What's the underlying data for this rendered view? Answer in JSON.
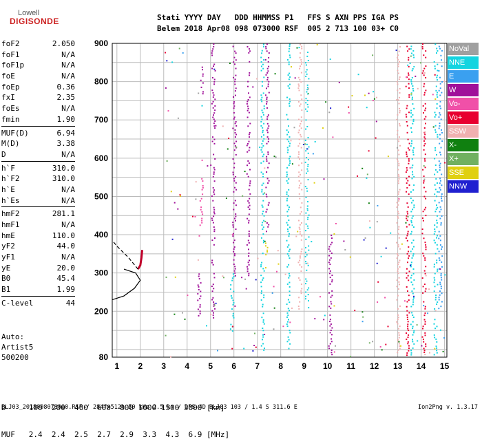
{
  "logo": {
    "line1": "Lowell",
    "line2": "DIGISONDE"
  },
  "header": {
    "row1": "Stati YYYY DAY   DDD HHMMSS P1   FFS S AXN PPS IGA PS",
    "row2": "Belem 2018 Apr08 098 073000 RSF  005 2 713 100 03+ C0"
  },
  "params": [
    {
      "label": "foF2",
      "value": "2.050"
    },
    {
      "label": "foF1",
      "value": "N/A"
    },
    {
      "label": "foF1p",
      "value": "N/A"
    },
    {
      "label": "foE",
      "value": "N/A"
    },
    {
      "label": "foEp",
      "value": "0.36"
    },
    {
      "label": "fxI",
      "value": "2.35"
    },
    {
      "label": "foEs",
      "value": "N/A"
    },
    {
      "label": "fmin",
      "value": "1.90"
    },
    {
      "sep": true
    },
    {
      "label": "MUF(D)",
      "value": "6.94"
    },
    {
      "label": "M(D)",
      "value": "3.38"
    },
    {
      "label": "D",
      "value": "N/A"
    },
    {
      "sep": true
    },
    {
      "label": "h`F",
      "value": "310.0"
    },
    {
      "label": "h`F2",
      "value": "310.0"
    },
    {
      "label": "h`E",
      "value": "N/A"
    },
    {
      "label": "h`Es",
      "value": "N/A"
    },
    {
      "sep": true
    },
    {
      "label": "hmF2",
      "value": "281.1"
    },
    {
      "label": "hmF1",
      "value": "N/A"
    },
    {
      "label": "hmE",
      "value": "110.0"
    },
    {
      "label": "yF2",
      "value": "44.0"
    },
    {
      "label": "yF1",
      "value": "N/A"
    },
    {
      "label": "yE",
      "value": "20.0"
    },
    {
      "label": "B0",
      "value": "45.4"
    },
    {
      "label": "B1",
      "value": "1.99"
    },
    {
      "sep": true
    },
    {
      "label": "C-level",
      "value": "44"
    }
  ],
  "auto": [
    "Auto:",
    "Artist5",
    "500200"
  ],
  "legend": [
    {
      "label": "NoVal",
      "color": "#a0a0a0"
    },
    {
      "label": "NNE",
      "color": "#14d4e0"
    },
    {
      "label": "E",
      "color": "#3aa0f0"
    },
    {
      "label": "W",
      "color": "#a0109a"
    },
    {
      "label": "Vo-",
      "color": "#f050a8"
    },
    {
      "label": "Vo+",
      "color": "#e80030"
    },
    {
      "label": "SSW",
      "color": "#f0b0b0"
    },
    {
      "label": "X-",
      "color": "#108010"
    },
    {
      "label": "X+",
      "color": "#70b060"
    },
    {
      "label": "SSE",
      "color": "#e0d010"
    },
    {
      "label": "NNW",
      "color": "#2020d0"
    }
  ],
  "dmuf": {
    "d_row": "D     100  200  400  600  800 1000 1500 3000 [km]",
    "muf_row": "MUF   2.4  2.4  2.5  2.7  2.9  3.3  4.3  6.9 [MHz]"
  },
  "footer": {
    "left": "BLJ03_2018098073000.RSF / 284fx512h 50 kHz 2.5 km / DPS-4D BLJ03 103 / 1.4 S 311.6 E",
    "right": "Ion2Png v. 1.3.17"
  },
  "chart_data": {
    "type": "scatter",
    "title": "",
    "xlabel": "",
    "ylabel": "",
    "xlim": [
      0.8,
      15.1
    ],
    "ylim": [
      80,
      900
    ],
    "xticks": [
      1,
      2,
      3,
      4,
      5,
      6,
      7,
      8,
      9,
      10,
      11,
      12,
      13,
      14,
      15
    ],
    "yticks": [
      80,
      200,
      300,
      400,
      500,
      600,
      700,
      800,
      900
    ],
    "grid": true,
    "clusters": [
      {
        "series": "W",
        "x": 4.6,
        "y0": 760,
        "y1": 840
      },
      {
        "series": "Vo-",
        "x": 4.6,
        "y0": 420,
        "y1": 560
      },
      {
        "series": "W",
        "x": 4.5,
        "y0": 180,
        "y1": 300
      },
      {
        "series": "W",
        "x": 5.1,
        "y0": 180,
        "y1": 900
      },
      {
        "series": "NNE",
        "x": 5.9,
        "y0": 140,
        "y1": 300
      },
      {
        "series": "W",
        "x": 6.0,
        "y0": 280,
        "y1": 900
      },
      {
        "series": "W",
        "x": 6.6,
        "y0": 290,
        "y1": 900
      },
      {
        "series": "NNE",
        "x": 7.2,
        "y0": 80,
        "y1": 900
      },
      {
        "series": "W",
        "x": 7.4,
        "y0": 400,
        "y1": 900
      },
      {
        "series": "SSE",
        "x": 7.4,
        "y0": 300,
        "y1": 380
      },
      {
        "series": "NNE",
        "x": 8.3,
        "y0": 80,
        "y1": 900
      },
      {
        "series": "NNE",
        "x": 9.1,
        "y0": 200,
        "y1": 880
      },
      {
        "series": "SSW",
        "x": 8.8,
        "y0": 200,
        "y1": 900
      },
      {
        "series": "W",
        "x": 10.1,
        "y0": 80,
        "y1": 400
      },
      {
        "series": "SSW",
        "x": 13.0,
        "y0": 80,
        "y1": 900
      },
      {
        "series": "Vo+",
        "x": 13.4,
        "y0": 80,
        "y1": 900
      },
      {
        "series": "NNE",
        "x": 13.6,
        "y0": 80,
        "y1": 900
      },
      {
        "series": "Vo+",
        "x": 14.1,
        "y0": 80,
        "y1": 900
      },
      {
        "series": "NNE",
        "x": 14.6,
        "y0": 80,
        "y1": 900
      },
      {
        "series": "E",
        "x": 14.8,
        "y0": 200,
        "y1": 900
      }
    ],
    "trace": [
      {
        "x": 1.9,
        "y": 310
      },
      {
        "x": 2.0,
        "y": 320
      },
      {
        "x": 2.05,
        "y": 340
      },
      {
        "x": 2.08,
        "y": 360
      }
    ],
    "profile_solid": [
      {
        "x": 0.8,
        "y": 230
      },
      {
        "x": 1.3,
        "y": 240
      },
      {
        "x": 1.75,
        "y": 260
      },
      {
        "x": 2.0,
        "y": 281
      },
      {
        "x": 1.8,
        "y": 300
      },
      {
        "x": 1.3,
        "y": 310
      }
    ],
    "profile_dashed": [
      {
        "x": 1.9,
        "y": 310
      },
      {
        "x": 1.5,
        "y": 340
      },
      {
        "x": 1.0,
        "y": 370
      },
      {
        "x": 0.8,
        "y": 385
      }
    ]
  }
}
